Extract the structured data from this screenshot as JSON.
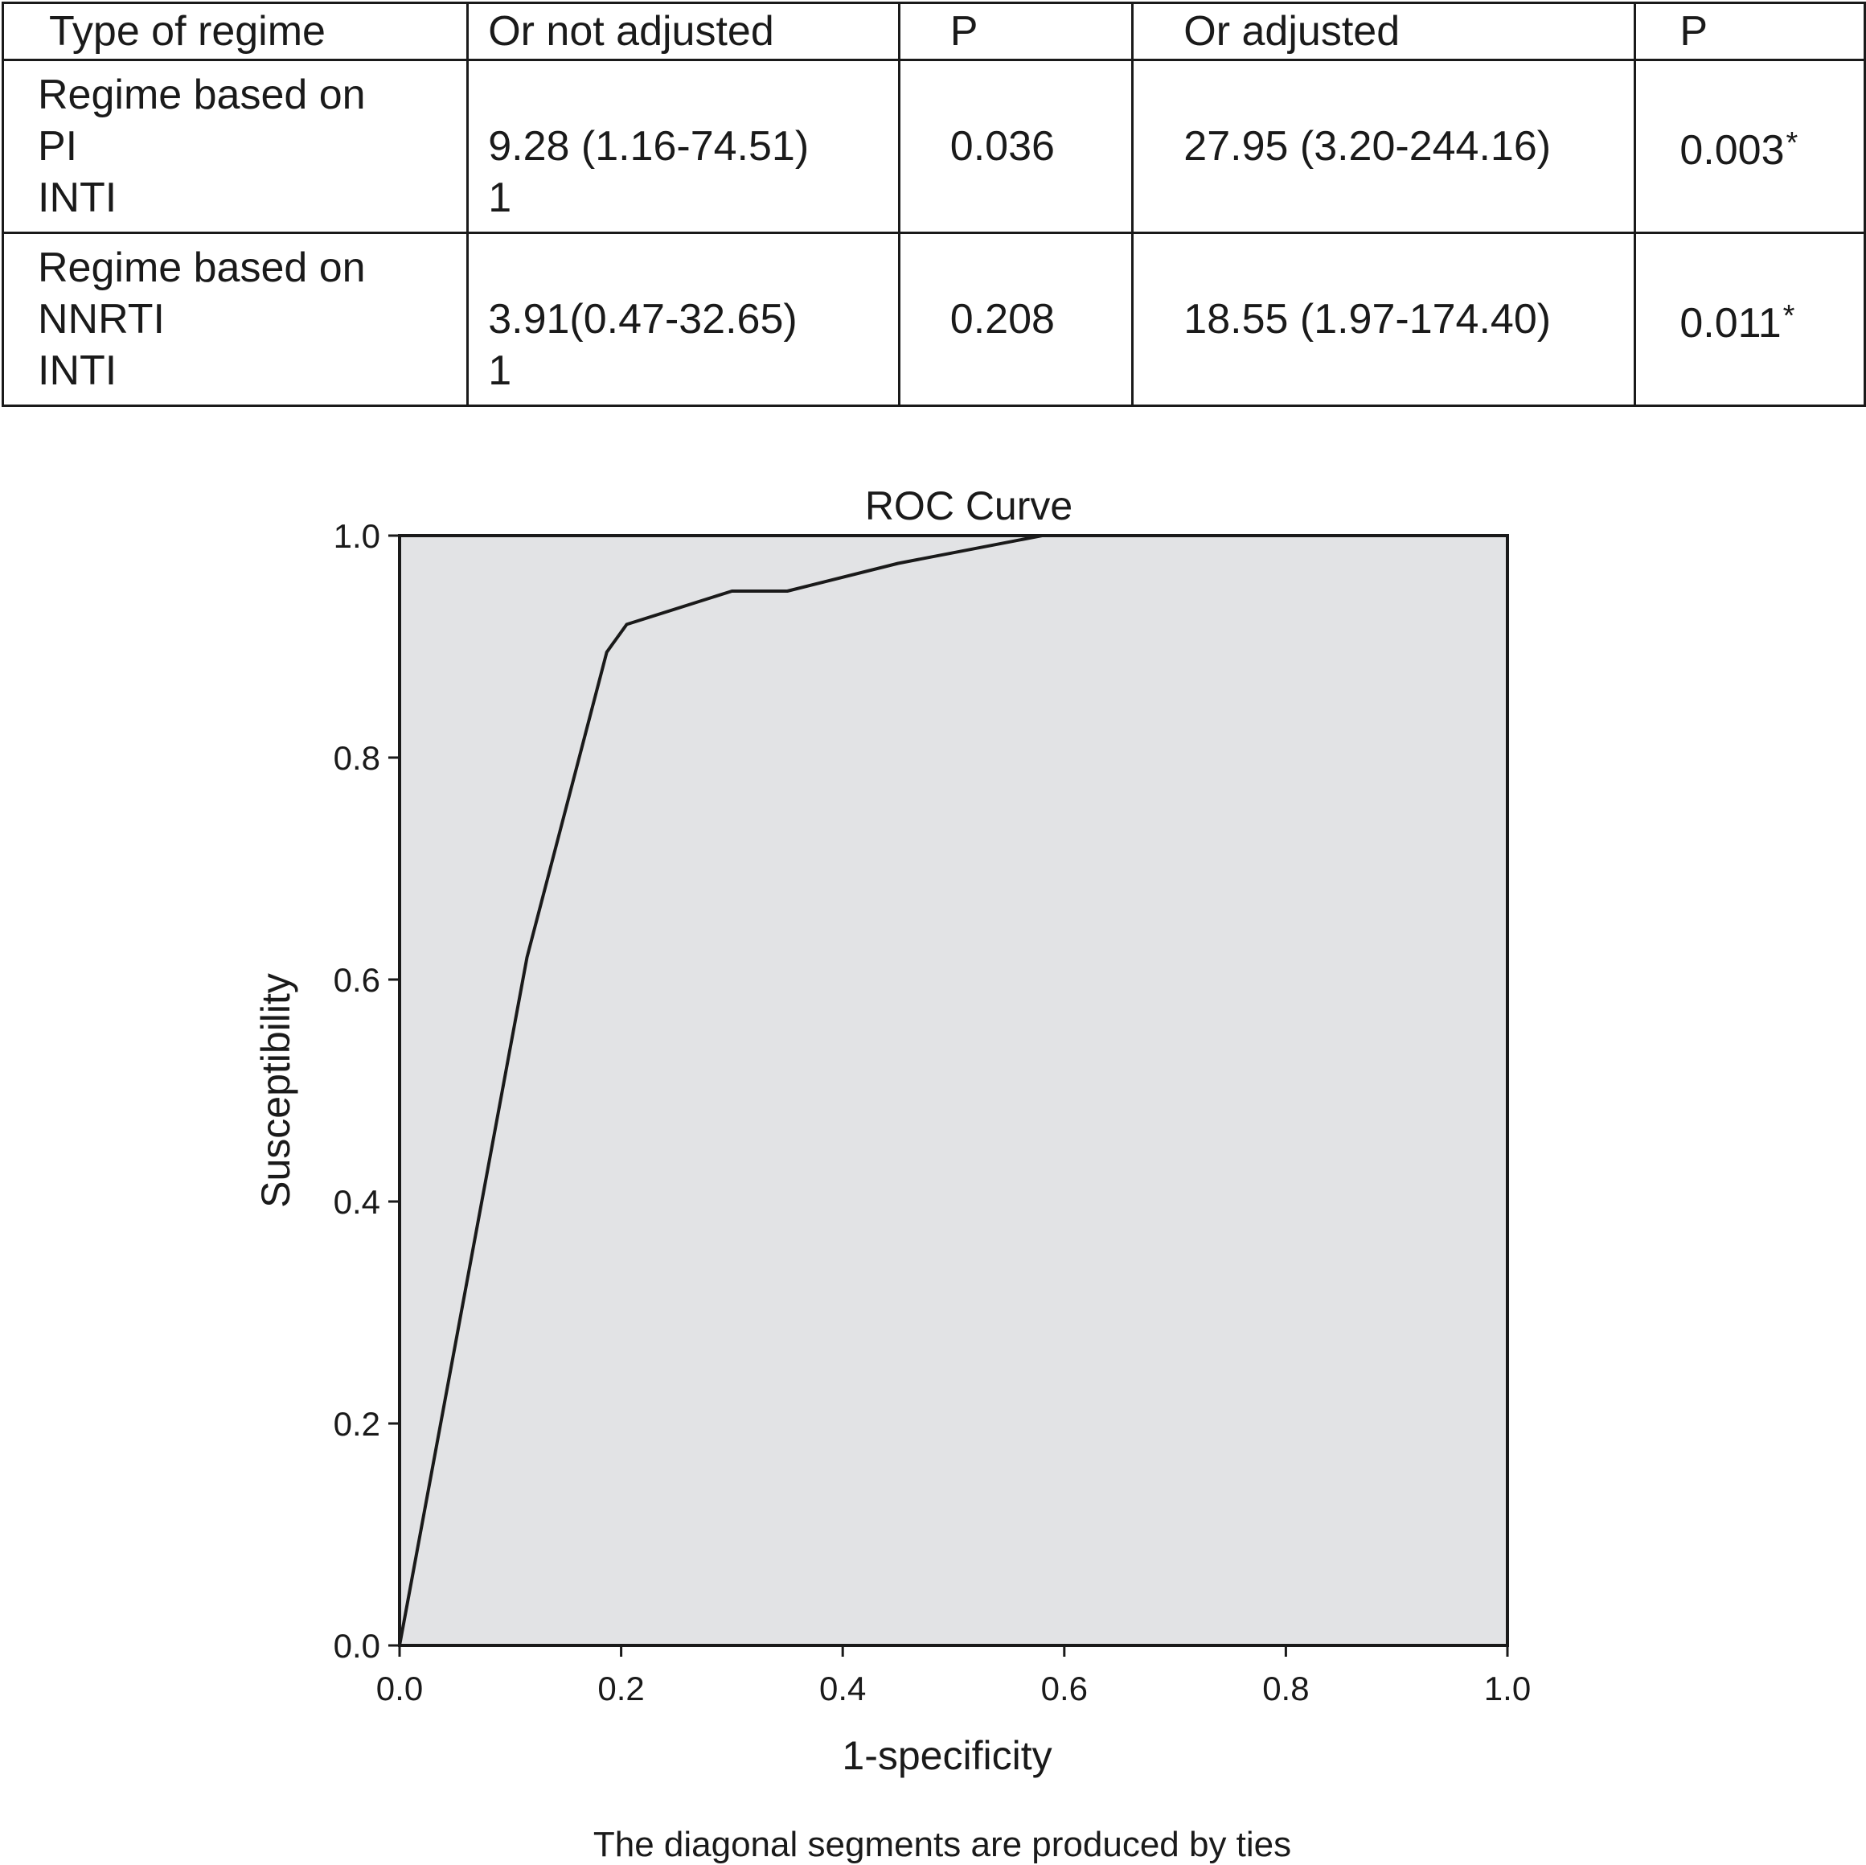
{
  "table": {
    "headers": [
      "Type of regime",
      "Or not adjusted",
      "P",
      "Or adjusted",
      "P"
    ],
    "rows": [
      {
        "group": [
          "Regime based on",
          "PI",
          "INTI"
        ],
        "or_not_adjusted": [
          "9.28 (1.16-74.51)",
          "1"
        ],
        "p1": "0.036",
        "or_adjusted": "27.95 (3.20-244.16)",
        "p2": "0.003",
        "p2_mark": "*"
      },
      {
        "group": [
          "Regime based on",
          "NNRTI",
          "INTI"
        ],
        "or_not_adjusted": [
          "3.91(0.47-32.65)",
          "1"
        ],
        "p1": "0.208",
        "or_adjusted": "18.55 (1.97-174.40)",
        "p2": "0.011",
        "p2_mark": "*"
      }
    ]
  },
  "chart_data": {
    "type": "line",
    "title": "ROC Curve",
    "xlabel": "1-specificity",
    "ylabel": "Susceptibility",
    "caption": "The diagonal segments are produced by ties",
    "xlim": [
      0,
      1
    ],
    "ylim": [
      0,
      1
    ],
    "x_ticks": [
      "0.0",
      "0.2",
      "0.4",
      "0.6",
      "0.8",
      "1.0"
    ],
    "y_ticks": [
      "0.0",
      "0.2",
      "0.4",
      "0.6",
      "0.8",
      "1.0"
    ],
    "grid": false,
    "plot_background": "#e2e3e5",
    "line_color": "#1a1a1a",
    "series": [
      {
        "x": [
          0.0,
          0.115,
          0.187,
          0.205,
          0.3,
          0.35,
          0.45,
          0.58,
          1.0
        ],
        "y": [
          0.0,
          0.62,
          0.895,
          0.92,
          0.95,
          0.95,
          0.975,
          1.0,
          1.0
        ]
      }
    ]
  }
}
